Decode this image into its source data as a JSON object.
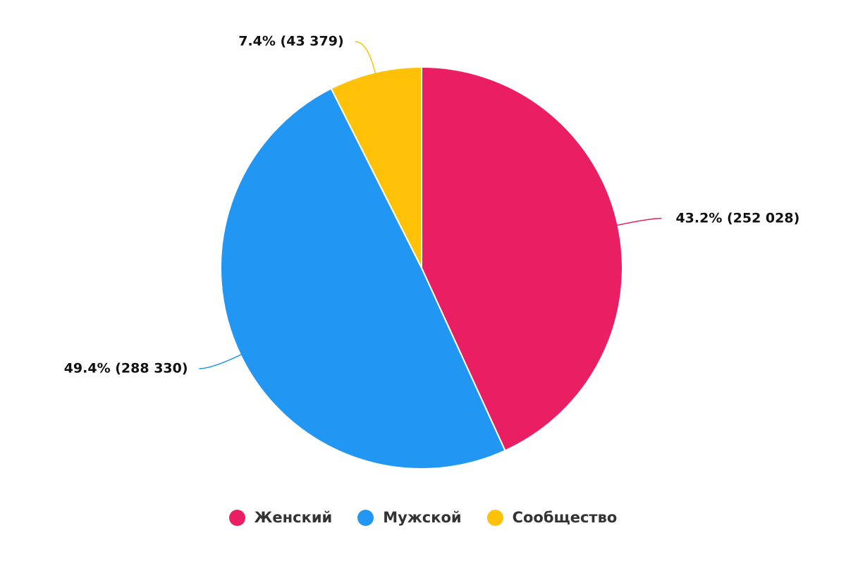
{
  "chart_data": {
    "type": "pie",
    "categories": [
      "Женский",
      "Мужской",
      "Сообщество"
    ],
    "values": [
      252028,
      288330,
      43379
    ],
    "value_labels": [
      "43.2% (252 028)",
      "49.4% (288 330)",
      "7.4% (43 379)"
    ],
    "colors": [
      "#e91e63",
      "#2196f3",
      "#ffc107"
    ],
    "legend": "bottom"
  }
}
